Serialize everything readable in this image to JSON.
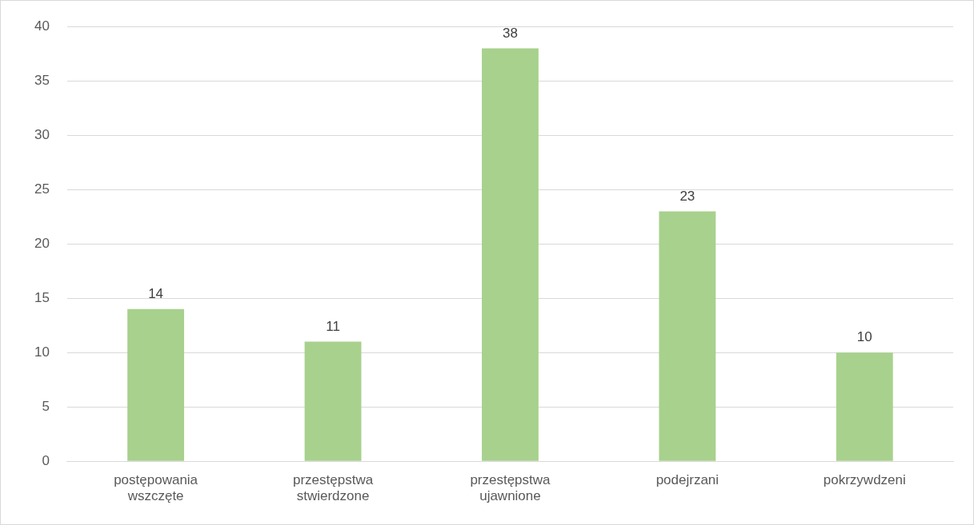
{
  "chart_data": {
    "type": "bar",
    "categories": [
      "postępowania wszczęte",
      "przestępstwa stwierdzone",
      "przestępstwa ujawnione",
      "podejrzani",
      "pokrzywdzeni"
    ],
    "values": [
      14,
      11,
      38,
      23,
      10
    ],
    "color": "#a9d18e",
    "ylim": [
      0,
      40
    ],
    "yticks": [
      0,
      5,
      10,
      15,
      20,
      25,
      30,
      35,
      40
    ],
    "grid": "y",
    "data_labels": true,
    "legend": false
  }
}
